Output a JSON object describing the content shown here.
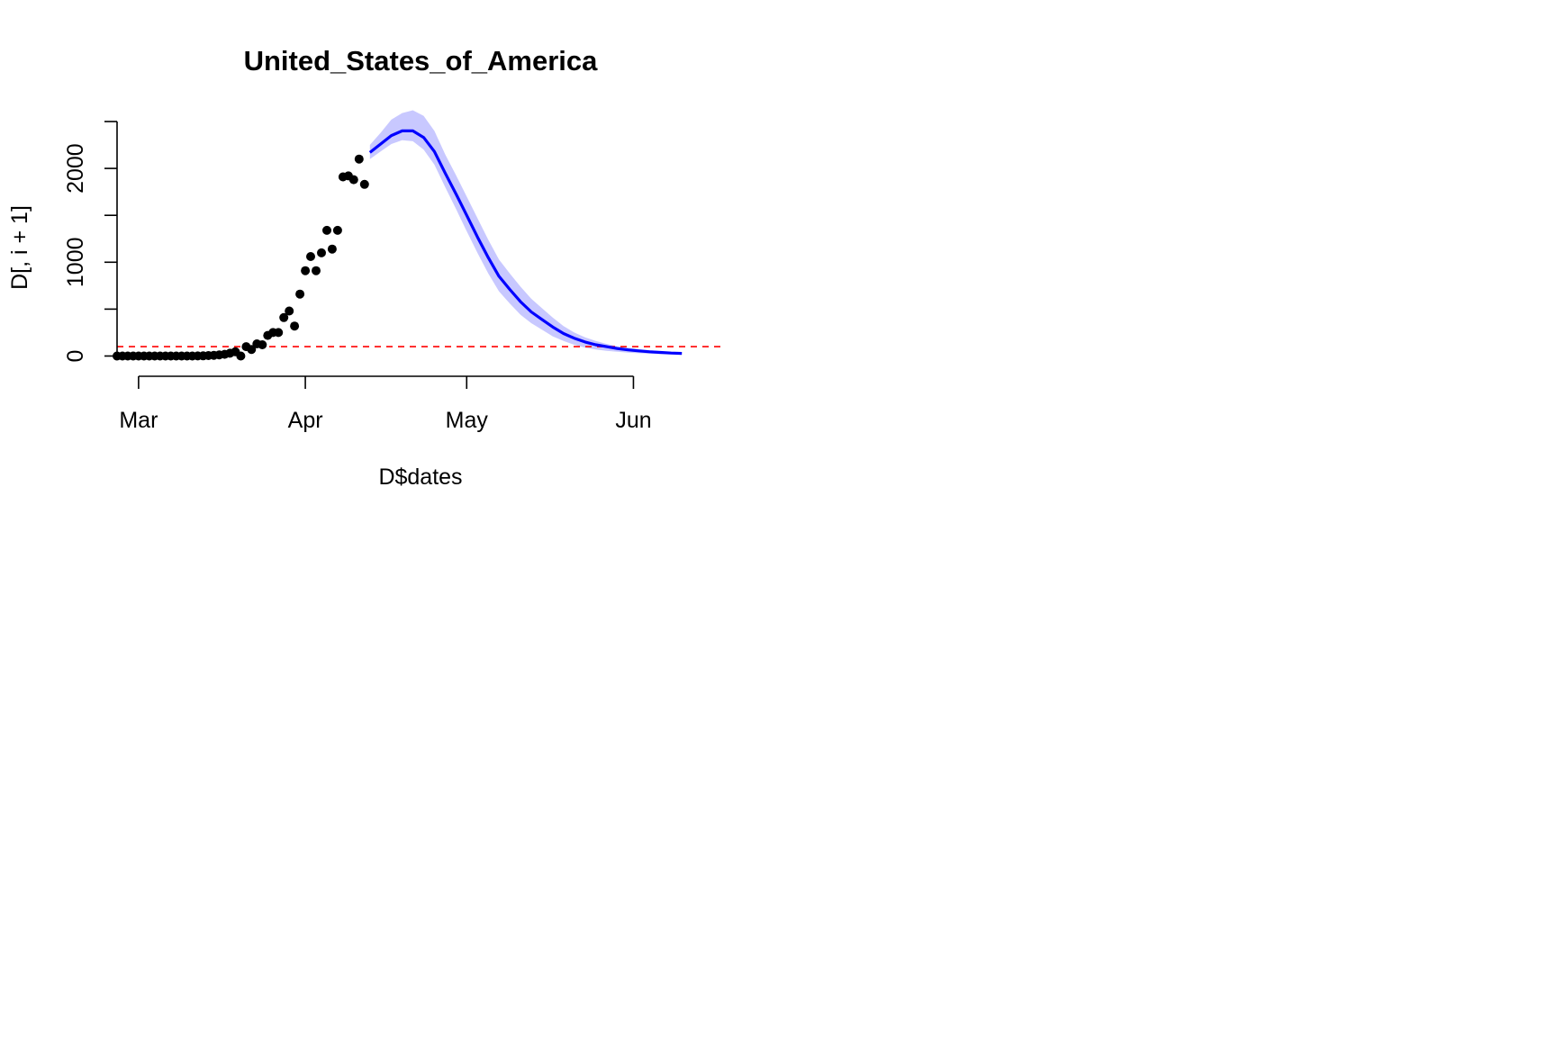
{
  "chart_data": {
    "type": "scatter",
    "title": "United_States_of_America",
    "xlabel": "D$dates",
    "ylabel": "D[, i + 1]",
    "xlim": [
      "2020-02-26",
      "2020-06-18"
    ],
    "ylim": [
      -120,
      2500
    ],
    "x_ticks": [
      {
        "date": "2020-03-01",
        "label": "Mar"
      },
      {
        "date": "2020-04-01",
        "label": "Apr"
      },
      {
        "date": "2020-05-01",
        "label": "May"
      },
      {
        "date": "2020-06-01",
        "label": "Jun"
      }
    ],
    "y_ticks": [
      0,
      500,
      1000,
      1500,
      2000,
      2500
    ],
    "y_tick_labels": [
      "0",
      "",
      "1000",
      "",
      "2000",
      ""
    ],
    "threshold": {
      "y": 100,
      "color": "#ff0000",
      "style": "dashed"
    },
    "colors": {
      "observed": "#000000",
      "forecast": "#0000ff",
      "band": "#c8c8ff",
      "threshold": "#ff0000"
    },
    "series": [
      {
        "kind": "observed",
        "points": [
          {
            "x": "2020-02-26",
            "y": 0
          },
          {
            "x": "2020-02-27",
            "y": 0
          },
          {
            "x": "2020-02-28",
            "y": 0
          },
          {
            "x": "2020-02-29",
            "y": 0
          },
          {
            "x": "2020-03-01",
            "y": 0
          },
          {
            "x": "2020-03-02",
            "y": 0
          },
          {
            "x": "2020-03-03",
            "y": 0
          },
          {
            "x": "2020-03-04",
            "y": 0
          },
          {
            "x": "2020-03-05",
            "y": 0
          },
          {
            "x": "2020-03-06",
            "y": 0
          },
          {
            "x": "2020-03-07",
            "y": 0
          },
          {
            "x": "2020-03-08",
            "y": 0
          },
          {
            "x": "2020-03-09",
            "y": 0
          },
          {
            "x": "2020-03-10",
            "y": 0
          },
          {
            "x": "2020-03-11",
            "y": 0
          },
          {
            "x": "2020-03-12",
            "y": 1
          },
          {
            "x": "2020-03-13",
            "y": 2
          },
          {
            "x": "2020-03-14",
            "y": 5
          },
          {
            "x": "2020-03-15",
            "y": 8
          },
          {
            "x": "2020-03-16",
            "y": 12
          },
          {
            "x": "2020-03-17",
            "y": 18
          },
          {
            "x": "2020-03-18",
            "y": 30
          },
          {
            "x": "2020-03-19",
            "y": 45
          },
          {
            "x": "2020-03-20",
            "y": 0
          },
          {
            "x": "2020-03-21",
            "y": 100
          },
          {
            "x": "2020-03-22",
            "y": 70
          },
          {
            "x": "2020-03-23",
            "y": 130
          },
          {
            "x": "2020-03-24",
            "y": 120
          },
          {
            "x": "2020-03-25",
            "y": 220
          },
          {
            "x": "2020-03-26",
            "y": 250
          },
          {
            "x": "2020-03-27",
            "y": 250
          },
          {
            "x": "2020-03-28",
            "y": 410
          },
          {
            "x": "2020-03-29",
            "y": 480
          },
          {
            "x": "2020-03-30",
            "y": 320
          },
          {
            "x": "2020-03-31",
            "y": 660
          },
          {
            "x": "2020-04-01",
            "y": 910
          },
          {
            "x": "2020-04-02",
            "y": 1060
          },
          {
            "x": "2020-04-03",
            "y": 910
          },
          {
            "x": "2020-04-04",
            "y": 1100
          },
          {
            "x": "2020-04-05",
            "y": 1340
          },
          {
            "x": "2020-04-06",
            "y": 1140
          },
          {
            "x": "2020-04-07",
            "y": 1340
          },
          {
            "x": "2020-04-08",
            "y": 1910
          },
          {
            "x": "2020-04-09",
            "y": 1920
          },
          {
            "x": "2020-04-10",
            "y": 1880
          },
          {
            "x": "2020-04-11",
            "y": 2100
          },
          {
            "x": "2020-04-12",
            "y": 1830
          }
        ]
      },
      {
        "kind": "forecast",
        "points": [
          {
            "x": "2020-04-13",
            "y": 2170
          },
          {
            "x": "2020-04-15",
            "y": 2260
          },
          {
            "x": "2020-04-17",
            "y": 2350
          },
          {
            "x": "2020-04-19",
            "y": 2400
          },
          {
            "x": "2020-04-21",
            "y": 2400
          },
          {
            "x": "2020-04-23",
            "y": 2330
          },
          {
            "x": "2020-04-25",
            "y": 2180
          },
          {
            "x": "2020-04-27",
            "y": 1950
          },
          {
            "x": "2020-04-29",
            "y": 1730
          },
          {
            "x": "2020-05-01",
            "y": 1500
          },
          {
            "x": "2020-05-03",
            "y": 1270
          },
          {
            "x": "2020-05-05",
            "y": 1050
          },
          {
            "x": "2020-05-07",
            "y": 850
          },
          {
            "x": "2020-05-09",
            "y": 710
          },
          {
            "x": "2020-05-11",
            "y": 580
          },
          {
            "x": "2020-05-13",
            "y": 470
          },
          {
            "x": "2020-05-15",
            "y": 390
          },
          {
            "x": "2020-05-17",
            "y": 310
          },
          {
            "x": "2020-05-19",
            "y": 240
          },
          {
            "x": "2020-05-21",
            "y": 190
          },
          {
            "x": "2020-05-23",
            "y": 150
          },
          {
            "x": "2020-05-25",
            "y": 120
          },
          {
            "x": "2020-05-27",
            "y": 100
          },
          {
            "x": "2020-05-29",
            "y": 80
          },
          {
            "x": "2020-05-31",
            "y": 65
          },
          {
            "x": "2020-06-02",
            "y": 55
          },
          {
            "x": "2020-06-04",
            "y": 45
          },
          {
            "x": "2020-06-06",
            "y": 38
          },
          {
            "x": "2020-06-08",
            "y": 32
          },
          {
            "x": "2020-06-10",
            "y": 28
          }
        ]
      },
      {
        "kind": "interval",
        "points": [
          {
            "x": "2020-04-13",
            "lo": 2100,
            "hi": 2250
          },
          {
            "x": "2020-04-15",
            "lo": 2180,
            "hi": 2380
          },
          {
            "x": "2020-04-17",
            "lo": 2260,
            "hi": 2520
          },
          {
            "x": "2020-04-19",
            "lo": 2300,
            "hi": 2590
          },
          {
            "x": "2020-04-21",
            "lo": 2290,
            "hi": 2620
          },
          {
            "x": "2020-04-23",
            "lo": 2200,
            "hi": 2560
          },
          {
            "x": "2020-04-25",
            "lo": 2040,
            "hi": 2400
          },
          {
            "x": "2020-04-27",
            "lo": 1800,
            "hi": 2150
          },
          {
            "x": "2020-04-29",
            "lo": 1570,
            "hi": 1930
          },
          {
            "x": "2020-05-01",
            "lo": 1330,
            "hi": 1700
          },
          {
            "x": "2020-05-03",
            "lo": 1100,
            "hi": 1470
          },
          {
            "x": "2020-05-05",
            "lo": 880,
            "hi": 1240
          },
          {
            "x": "2020-05-07",
            "lo": 690,
            "hi": 1030
          },
          {
            "x": "2020-05-09",
            "lo": 560,
            "hi": 880
          },
          {
            "x": "2020-05-11",
            "lo": 440,
            "hi": 740
          },
          {
            "x": "2020-05-13",
            "lo": 350,
            "hi": 610
          },
          {
            "x": "2020-05-15",
            "lo": 280,
            "hi": 510
          },
          {
            "x": "2020-05-17",
            "lo": 210,
            "hi": 410
          },
          {
            "x": "2020-05-19",
            "lo": 160,
            "hi": 320
          },
          {
            "x": "2020-05-21",
            "lo": 120,
            "hi": 250
          },
          {
            "x": "2020-05-23",
            "lo": 90,
            "hi": 200
          },
          {
            "x": "2020-05-25",
            "lo": 70,
            "hi": 160
          },
          {
            "x": "2020-05-27",
            "lo": 55,
            "hi": 130
          },
          {
            "x": "2020-05-29",
            "lo": 45,
            "hi": 105
          },
          {
            "x": "2020-05-31",
            "lo": 35,
            "hi": 90
          },
          {
            "x": "2020-06-02",
            "lo": 30,
            "hi": 75
          },
          {
            "x": "2020-06-04",
            "lo": 25,
            "hi": 62
          },
          {
            "x": "2020-06-06",
            "lo": 20,
            "hi": 52
          },
          {
            "x": "2020-06-08",
            "lo": 17,
            "hi": 45
          },
          {
            "x": "2020-06-10",
            "lo": 15,
            "hi": 40
          }
        ]
      }
    ]
  }
}
